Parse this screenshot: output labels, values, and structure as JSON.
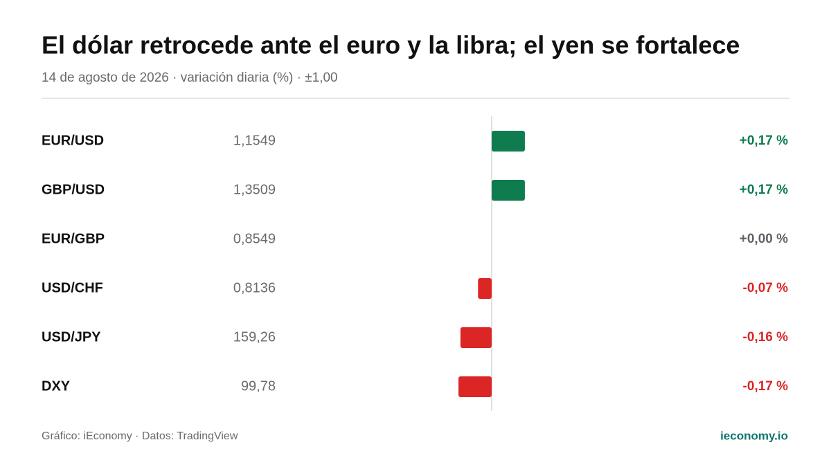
{
  "chart_data": {
    "type": "bar",
    "orientation": "horizontal",
    "title": "El dólar retrocede ante el euro y la libra; el yen se fortalece",
    "subtitle": "14 de agosto de 2026 · variación diaria (%) · ±1,00",
    "categories": [
      "EUR/USD",
      "GBP/USD",
      "EUR/GBP",
      "USD/CHF",
      "USD/JPY",
      "DXY"
    ],
    "rates": [
      "1,1549",
      "1,3509",
      "0,8549",
      "0,8136",
      "159,26",
      "99,78"
    ],
    "values": [
      0.17,
      0.17,
      0.0,
      -0.07,
      -0.16,
      -0.17
    ],
    "value_labels": [
      "+0,17 %",
      "+0,17 %",
      "+0,00 %",
      "-0,07 %",
      "-0,16 %",
      "-0,17 %"
    ],
    "xlim": [
      -1,
      1
    ],
    "colors": {
      "positive": "#0e7c4f",
      "negative": "#dc2626",
      "zero": "#5f6368"
    },
    "source": "Gráfico: iEconomy · Datos: TradingView",
    "brand": "ieconomy.io"
  }
}
